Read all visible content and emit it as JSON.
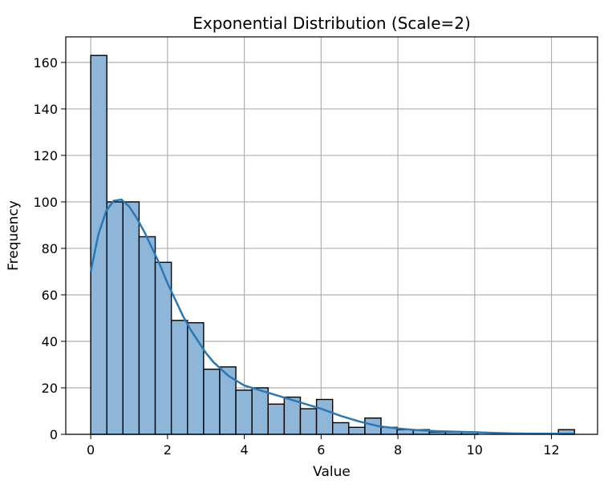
{
  "chart_data": {
    "type": "bar",
    "title": "Exponential Distribution (Scale=2)",
    "xlabel": "Value",
    "ylabel": "Frequency",
    "xlim": [
      -0.65,
      13.2
    ],
    "ylim": [
      0,
      171
    ],
    "xticks": [
      0,
      2,
      4,
      6,
      8,
      10,
      12
    ],
    "yticks": [
      0,
      20,
      40,
      60,
      80,
      100,
      120,
      140,
      160
    ],
    "grid": true,
    "bin_edges": [
      0.0,
      0.42,
      0.84,
      1.26,
      1.68,
      2.1,
      2.52,
      2.94,
      3.36,
      3.78,
      4.2,
      4.62,
      5.04,
      5.46,
      5.88,
      6.3,
      6.72,
      7.14,
      7.56,
      7.98,
      8.4,
      8.82,
      9.24,
      9.66,
      10.08,
      10.5,
      10.92,
      11.34,
      11.76,
      12.18,
      12.6
    ],
    "counts": [
      163,
      100,
      100,
      85,
      74,
      49,
      48,
      28,
      29,
      19,
      20,
      13,
      16,
      11,
      15,
      5,
      3,
      7,
      3,
      2,
      2,
      1,
      1,
      1,
      0,
      0,
      0,
      0,
      0,
      2
    ],
    "kde": {
      "x": [
        0.0,
        0.2,
        0.4,
        0.6,
        0.8,
        1.0,
        1.2,
        1.4,
        1.6,
        1.8,
        2.0,
        2.2,
        2.4,
        2.6,
        2.8,
        3.0,
        3.2,
        3.4,
        3.6,
        3.8,
        4.0,
        4.5,
        5.0,
        5.5,
        6.0,
        6.5,
        7.0,
        7.5,
        8.0,
        8.5,
        9.0,
        9.5,
        10.0,
        10.5,
        11.0,
        11.5,
        12.0,
        12.6
      ],
      "y": [
        70,
        86,
        96,
        100.5,
        101,
        98,
        93,
        87,
        80,
        73,
        65,
        58,
        51,
        45,
        40,
        35,
        31,
        28,
        25,
        23,
        21,
        18.5,
        16,
        13.5,
        11,
        8,
        5.5,
        3.5,
        2.5,
        1.8,
        1.4,
        1.1,
        0.9,
        0.6,
        0.4,
        0.3,
        0.3,
        0.2
      ]
    },
    "bar_color": "#8db6d8",
    "line_color": "#2a78b5"
  }
}
